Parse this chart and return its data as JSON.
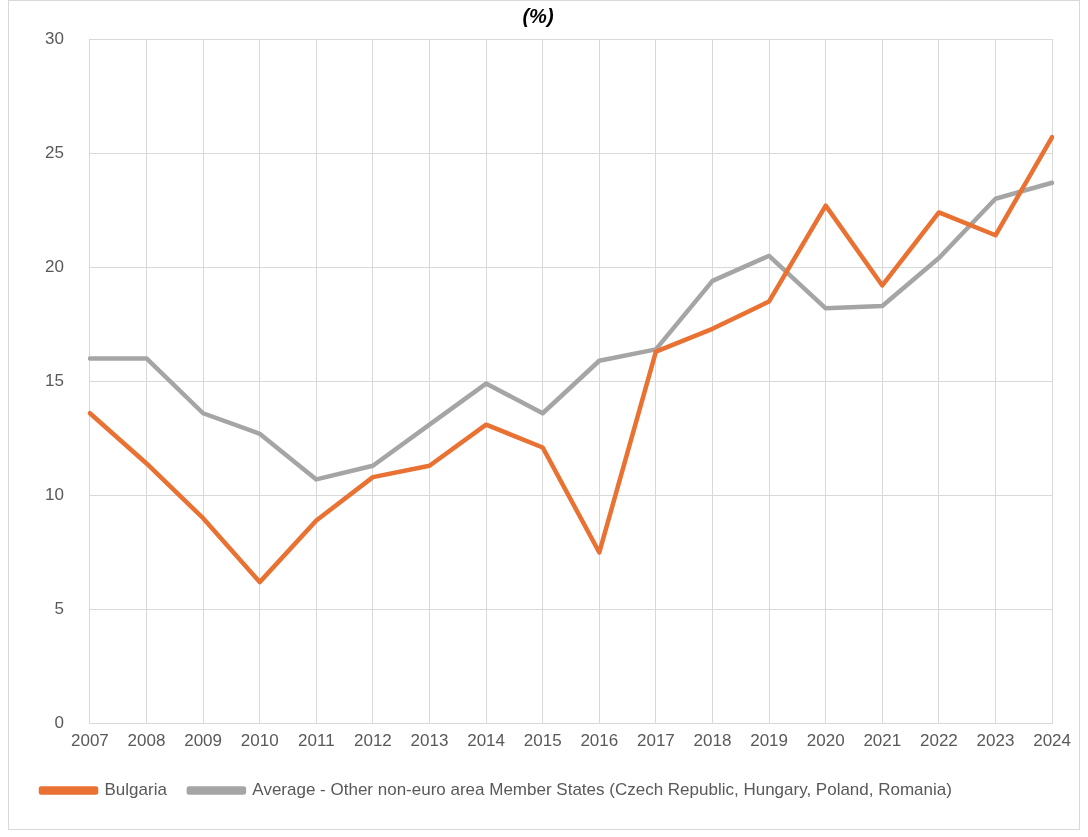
{
  "chart_data": {
    "type": "line",
    "title": "(%)",
    "categories": [
      "2007",
      "2008",
      "2009",
      "2010",
      "2011",
      "2012",
      "2013",
      "2014",
      "2015",
      "2016",
      "2017",
      "2018",
      "2019",
      "2020",
      "2021",
      "2022",
      "2023",
      "2024"
    ],
    "series": [
      {
        "name": "Bulgaria",
        "color": "#e97132",
        "values": [
          13.6,
          11.4,
          9.0,
          6.2,
          8.9,
          10.8,
          11.3,
          13.1,
          12.1,
          7.5,
          16.3,
          17.3,
          18.5,
          22.7,
          19.2,
          22.4,
          21.4,
          25.7
        ]
      },
      {
        "name": "Average - Other non-euro area Member States (Czech Republic, Hungary, Poland, Romania)",
        "color": "#a5a5a5",
        "values": [
          16.0,
          16.0,
          13.6,
          12.7,
          10.7,
          11.3,
          13.1,
          14.9,
          13.6,
          15.9,
          16.4,
          19.4,
          20.5,
          18.2,
          18.3,
          20.4,
          23.0,
          23.7
        ]
      }
    ],
    "ylim": [
      0,
      30
    ],
    "yticks": [
      0,
      5,
      10,
      15,
      20,
      25,
      30
    ],
    "grid": true,
    "legend": "bottom",
    "marker": "none",
    "line_style": "solid"
  }
}
